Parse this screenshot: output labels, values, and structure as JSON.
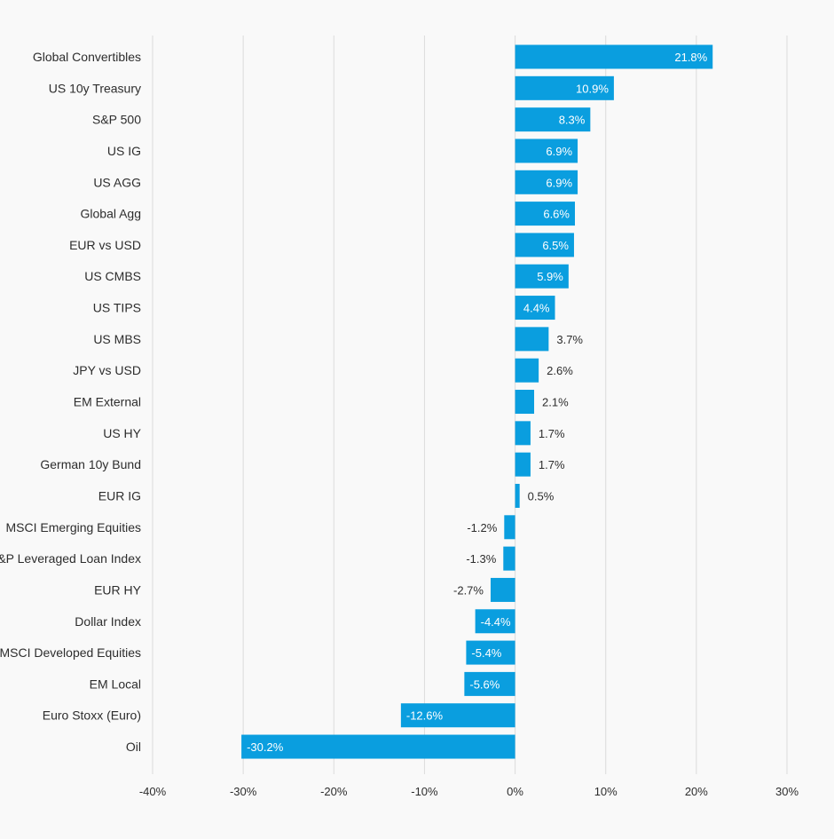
{
  "colors": {
    "bar": "#0a9edf",
    "label_inside": "#ffffff",
    "label_outside": "#2d2d2d",
    "grid": "#dcdcdc",
    "background": "#f9f9f9"
  },
  "chart_data": {
    "type": "bar",
    "orientation": "horizontal",
    "title": "",
    "xlabel": "",
    "ylabel": "",
    "xlim": [
      -40,
      30
    ],
    "x_ticks": [
      -40,
      -30,
      -20,
      -10,
      0,
      10,
      20,
      30
    ],
    "x_tick_labels": [
      "-40%",
      "-30%",
      "-20%",
      "-10%",
      "0%",
      "10%",
      "20%",
      "30%"
    ],
    "grid": true,
    "legend": "none",
    "categories": [
      "Global Convertibles",
      "US 10y Treasury",
      "S&P 500",
      "US IG",
      "US AGG",
      "Global Agg",
      "EUR vs USD",
      "US CMBS",
      "US TIPS",
      "US MBS",
      "JPY vs USD",
      "EM External",
      "US HY",
      "German 10y Bund",
      "EUR IG",
      "MSCI Emerging Equities",
      "S&P Leveraged Loan Index",
      "EUR HY",
      "Dollar Index",
      "MSCI Developed Equities",
      "EM Local",
      "Euro Stoxx (Euro)",
      "Oil"
    ],
    "values": [
      21.8,
      10.9,
      8.3,
      6.9,
      6.9,
      6.6,
      6.5,
      5.9,
      4.4,
      3.7,
      2.6,
      2.1,
      1.7,
      1.7,
      0.5,
      -1.2,
      -1.3,
      -2.7,
      -4.4,
      -5.4,
      -5.6,
      -12.6,
      -30.2
    ],
    "value_labels": [
      "21.8%",
      "10.9%",
      "8.3%",
      "6.9%",
      "6.9%",
      "6.6%",
      "6.5%",
      "5.9%",
      "4.4%",
      "3.7%",
      "2.6%",
      "2.1%",
      "1.7%",
      "1.7%",
      "0.5%",
      "-1.2%",
      "-1.3%",
      "-2.7%",
      "-4.4%",
      "-5.4%",
      "-5.6%",
      "-12.6%",
      "-30.2%"
    ]
  }
}
